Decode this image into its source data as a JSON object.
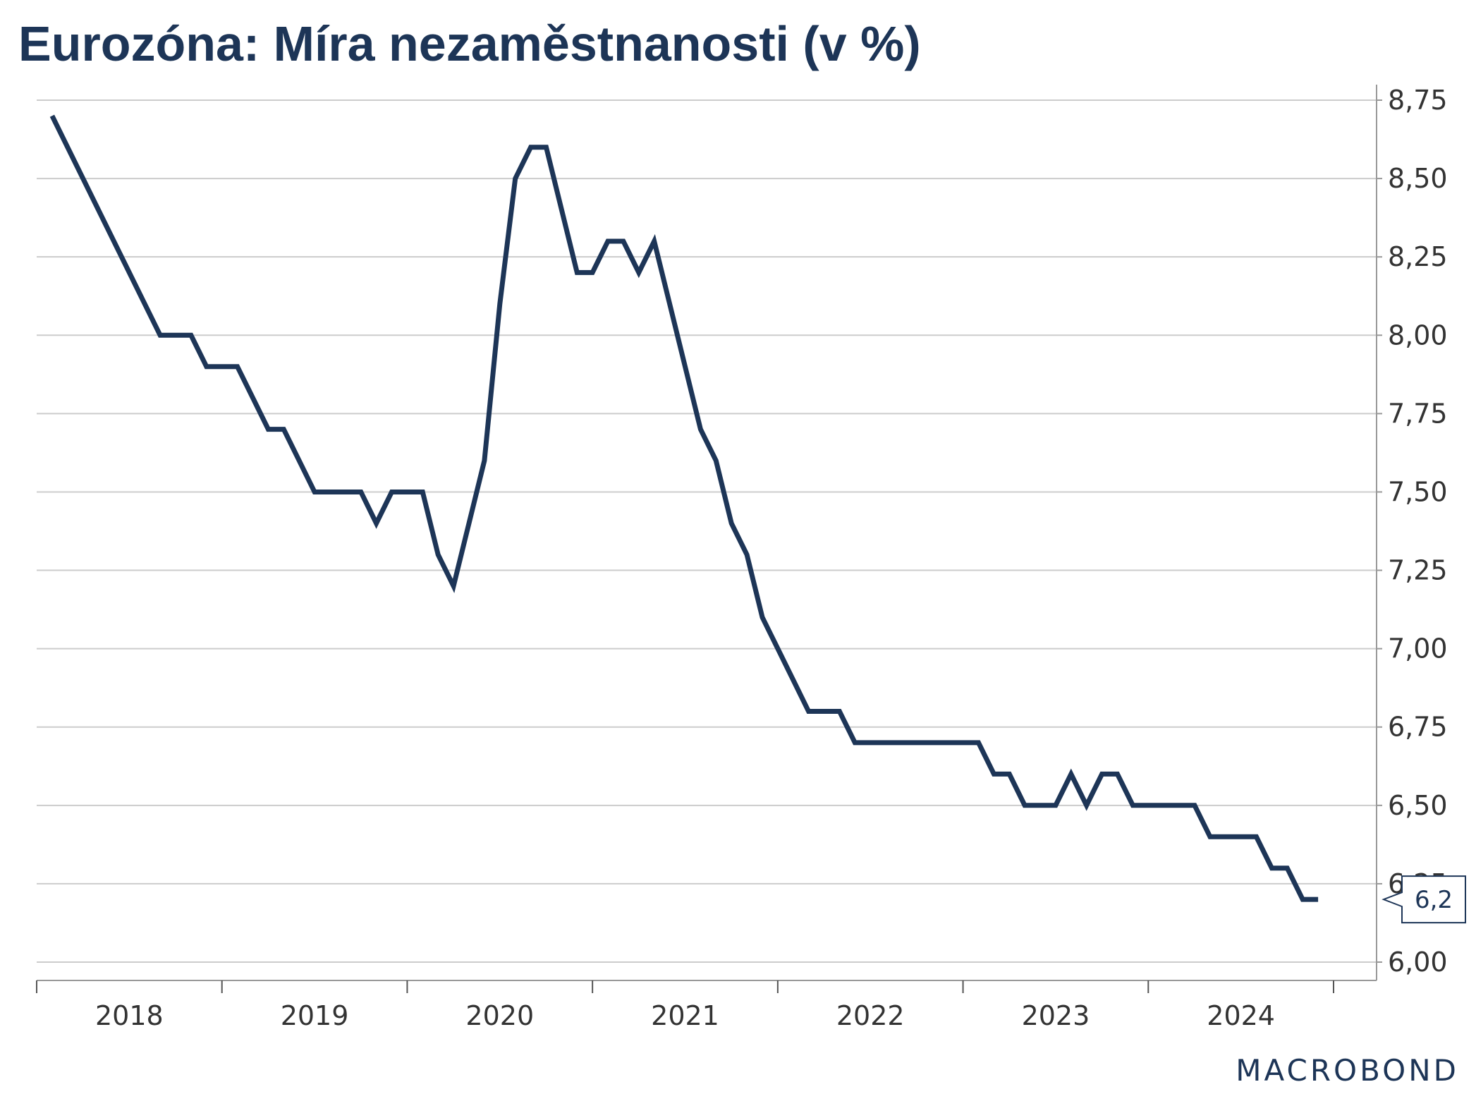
{
  "title": "Eurozóna: Míra nezaměstnanosti (v %)",
  "logo": "MACROBOND",
  "colors": {
    "line": "#1d3557",
    "grid": "#cccccc",
    "axis": "#999999",
    "text": "#333333"
  },
  "chart_data": {
    "type": "line",
    "title": "Eurozóna: Míra nezaměstnanosti (v %)",
    "xlabel": "",
    "ylabel": "",
    "y_axis_side": "right",
    "grid": true,
    "legend": "none",
    "ylim": [
      6.0,
      8.75
    ],
    "yticks": [
      "6,00",
      "6,25",
      "6,50",
      "6,75",
      "7,00",
      "7,25",
      "7,50",
      "7,75",
      "8,00",
      "8,25",
      "8,50",
      "8,75"
    ],
    "ytick_values": [
      6.0,
      6.25,
      6.5,
      6.75,
      7.0,
      7.25,
      7.5,
      7.75,
      8.0,
      8.25,
      8.5,
      8.75
    ],
    "xlim": [
      "2017-12",
      "2024-12"
    ],
    "xticks": [
      "2018",
      "2019",
      "2020",
      "2021",
      "2022",
      "2023",
      "2024"
    ],
    "last_value_label": "6,2",
    "series": [
      {
        "x": [
          "2018-01",
          "2018-08",
          "2018-09",
          "2018-10",
          "2018-11",
          "2018-12",
          "2019-01",
          "2019-02",
          "2019-03",
          "2019-04",
          "2019-05",
          "2019-06",
          "2019-07",
          "2019-08",
          "2019-09",
          "2019-10",
          "2019-11",
          "2019-12",
          "2020-01",
          "2020-02",
          "2020-03",
          "2020-04",
          "2020-05",
          "2020-06",
          "2020-07",
          "2020-08",
          "2020-09",
          "2020-10",
          "2020-11",
          "2020-12",
          "2021-01",
          "2021-02",
          "2021-03",
          "2021-04",
          "2021-05",
          "2021-06",
          "2021-07",
          "2021-08",
          "2021-09",
          "2021-10",
          "2021-11",
          "2021-12",
          "2022-01",
          "2022-02",
          "2022-03",
          "2022-04",
          "2022-05",
          "2022-06",
          "2022-07",
          "2022-08",
          "2022-09",
          "2022-10",
          "2022-11",
          "2022-12",
          "2023-01",
          "2023-02",
          "2023-03",
          "2023-04",
          "2023-05",
          "2023-06",
          "2023-07",
          "2023-08",
          "2023-09",
          "2023-10",
          "2023-11",
          "2023-12",
          "2024-01",
          "2024-02",
          "2024-03",
          "2024-04",
          "2024-05",
          "2024-06",
          "2024-07",
          "2024-08",
          "2024-09",
          "2024-10",
          "2024-11"
        ],
        "values": [
          8.7,
          8.0,
          8.0,
          8.0,
          7.9,
          7.9,
          7.9,
          7.8,
          7.7,
          7.7,
          7.6,
          7.5,
          7.5,
          7.5,
          7.5,
          7.4,
          7.5,
          7.5,
          7.5,
          7.3,
          7.2,
          7.4,
          7.6,
          8.1,
          8.5,
          8.6,
          8.6,
          8.4,
          8.2,
          8.2,
          8.3,
          8.3,
          8.2,
          8.3,
          8.1,
          7.9,
          7.7,
          7.6,
          7.4,
          7.3,
          7.1,
          7.0,
          6.9,
          6.8,
          6.8,
          6.8,
          6.7,
          6.7,
          6.7,
          6.7,
          6.7,
          6.7,
          6.7,
          6.7,
          6.7,
          6.6,
          6.6,
          6.5,
          6.5,
          6.5,
          6.6,
          6.5,
          6.6,
          6.6,
          6.5,
          6.5,
          6.5,
          6.5,
          6.5,
          6.4,
          6.4,
          6.4,
          6.4,
          6.3,
          6.3,
          6.2,
          6.2
        ]
      }
    ]
  }
}
